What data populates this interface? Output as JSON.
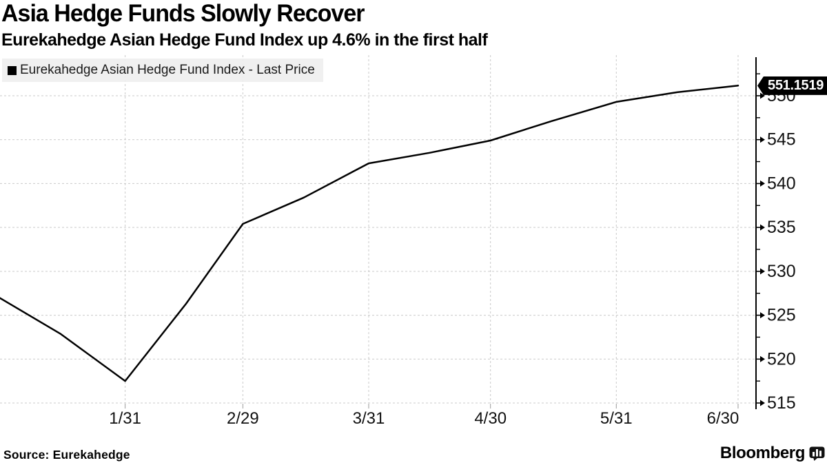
{
  "header": {
    "title": "Asia Hedge Funds Slowly Recover",
    "subtitle": "Eurekahedge Asian Hedge Fund Index up 4.6% in the first half"
  },
  "legend": {
    "marker": "black-square-series-marker",
    "label": "Eurekahedge Asian Hedge Fund Index - Last Price"
  },
  "price_flag": {
    "value": "551.1519"
  },
  "footer": {
    "source": "Source: Eurekahedge",
    "brand": "Bloomberg",
    "brand_icon": "bloomberg-chart-bubble-icon"
  },
  "colors": {
    "line": "#000000",
    "grid": "#c9c9c9",
    "axis": "#000000",
    "legend_bg": "#efefef",
    "flag_bg": "#000000",
    "flag_text": "#ffffff"
  },
  "chart_data": {
    "type": "line",
    "title": "Asia Hedge Funds Slowly Recover",
    "subtitle": "Eurekahedge Asian Hedge Fund Index up 4.6% in the first half",
    "xlabel": "",
    "ylabel": "",
    "axis_side": "right",
    "grid": "dashed",
    "x_tick_labels": [
      "1/31",
      "2/29",
      "3/31",
      "4/30",
      "5/31",
      "6/30"
    ],
    "y_ticks": [
      515,
      520,
      525,
      530,
      535,
      540,
      545,
      550
    ],
    "y_minor_step": 2.5,
    "ylim": [
      515,
      554.4
    ],
    "last_price": 551.1519,
    "series": [
      {
        "name": "Eurekahedge Asian Hedge Fund Index - Last Price",
        "color": "#000000",
        "points": [
          {
            "date": "12/31",
            "value": 527.0
          },
          {
            "date": "1/15",
            "value": 522.9
          },
          {
            "date": "1/31",
            "value": 517.5
          },
          {
            "date": "2/15",
            "value": 526.3
          },
          {
            "date": "2/29",
            "value": 535.4
          },
          {
            "date": "3/15",
            "value": 538.4
          },
          {
            "date": "3/31",
            "value": 542.3
          },
          {
            "date": "4/15",
            "value": 543.5
          },
          {
            "date": "4/30",
            "value": 544.9
          },
          {
            "date": "5/15",
            "value": 547.1
          },
          {
            "date": "5/31",
            "value": 549.3
          },
          {
            "date": "6/15",
            "value": 550.4
          },
          {
            "date": "6/30",
            "value": 551.1519
          }
        ]
      }
    ]
  }
}
